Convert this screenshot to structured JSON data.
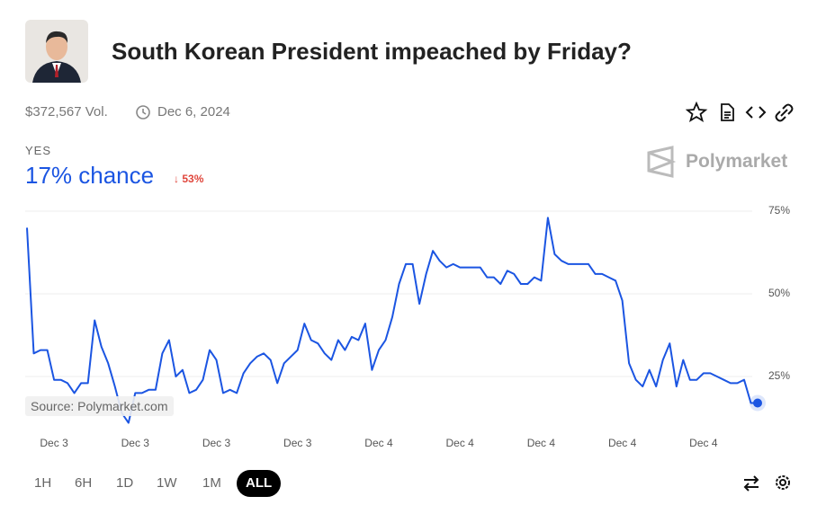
{
  "header": {
    "title": "South Korean President impeached by Friday?",
    "volume": "$372,567 Vol.",
    "date": "Dec 6, 2024"
  },
  "outcome": {
    "label": "YES",
    "chance": "17% chance",
    "change": "53%"
  },
  "brand": "Polymarket",
  "source": "Source: Polymarket.com",
  "time_ranges": [
    "1H",
    "6H",
    "1D",
    "1W",
    "1M",
    "ALL"
  ],
  "selected_range": "ALL",
  "chart_data": {
    "type": "line",
    "color": "#1b55e2",
    "grid": true,
    "ylim": [
      8,
      80
    ],
    "yticks": [
      {
        "value": 25,
        "label": "25%"
      },
      {
        "value": 50,
        "label": "50%"
      },
      {
        "value": 75,
        "label": "75%"
      }
    ],
    "categories": [
      null,
      null,
      null,
      null,
      "Dec 3",
      null,
      null,
      null,
      null,
      null,
      null,
      null,
      null,
      null,
      null,
      null,
      "Dec 3",
      null,
      null,
      null,
      null,
      null,
      null,
      null,
      null,
      null,
      null,
      null,
      "Dec 3",
      null,
      null,
      null,
      null,
      null,
      null,
      null,
      null,
      null,
      null,
      null,
      "Dec 3",
      null,
      null,
      null,
      null,
      null,
      null,
      null,
      null,
      null,
      null,
      null,
      "Dec 4",
      null,
      null,
      null,
      null,
      null,
      null,
      null,
      null,
      null,
      null,
      null,
      "Dec 4",
      null,
      null,
      null,
      null,
      null,
      null,
      null,
      null,
      null,
      null,
      null,
      "Dec 4",
      null,
      null,
      null,
      null,
      null,
      null,
      null,
      null,
      null,
      null,
      null,
      "Dec 4",
      null,
      null,
      null,
      null,
      null,
      null,
      null,
      null,
      null,
      null,
      null,
      "Dec 4",
      null,
      null,
      null,
      null,
      null,
      null,
      null,
      null
    ],
    "values": [
      70,
      32,
      33,
      33,
      24,
      24,
      23,
      20,
      23,
      23,
      42,
      34,
      29,
      22,
      14,
      11,
      20,
      20,
      21,
      21,
      32,
      36,
      25,
      27,
      20,
      21,
      24,
      33,
      30,
      20,
      21,
      20,
      26,
      29,
      31,
      32,
      30,
      23,
      29,
      31,
      33,
      41,
      36,
      35,
      32,
      30,
      36,
      33,
      37,
      36,
      41,
      27,
      33,
      36,
      43,
      53,
      59,
      59,
      47,
      56,
      63,
      60,
      58,
      59,
      58,
      58,
      58,
      58,
      55,
      55,
      53,
      57,
      56,
      53,
      53,
      55,
      54,
      73,
      62,
      60,
      59,
      59,
      59,
      59,
      56,
      56,
      55,
      54,
      48,
      29,
      24,
      22,
      27,
      22,
      30,
      35,
      22,
      30,
      24,
      24,
      26,
      26,
      25,
      24,
      23,
      23,
      24,
      17,
      17
    ]
  }
}
